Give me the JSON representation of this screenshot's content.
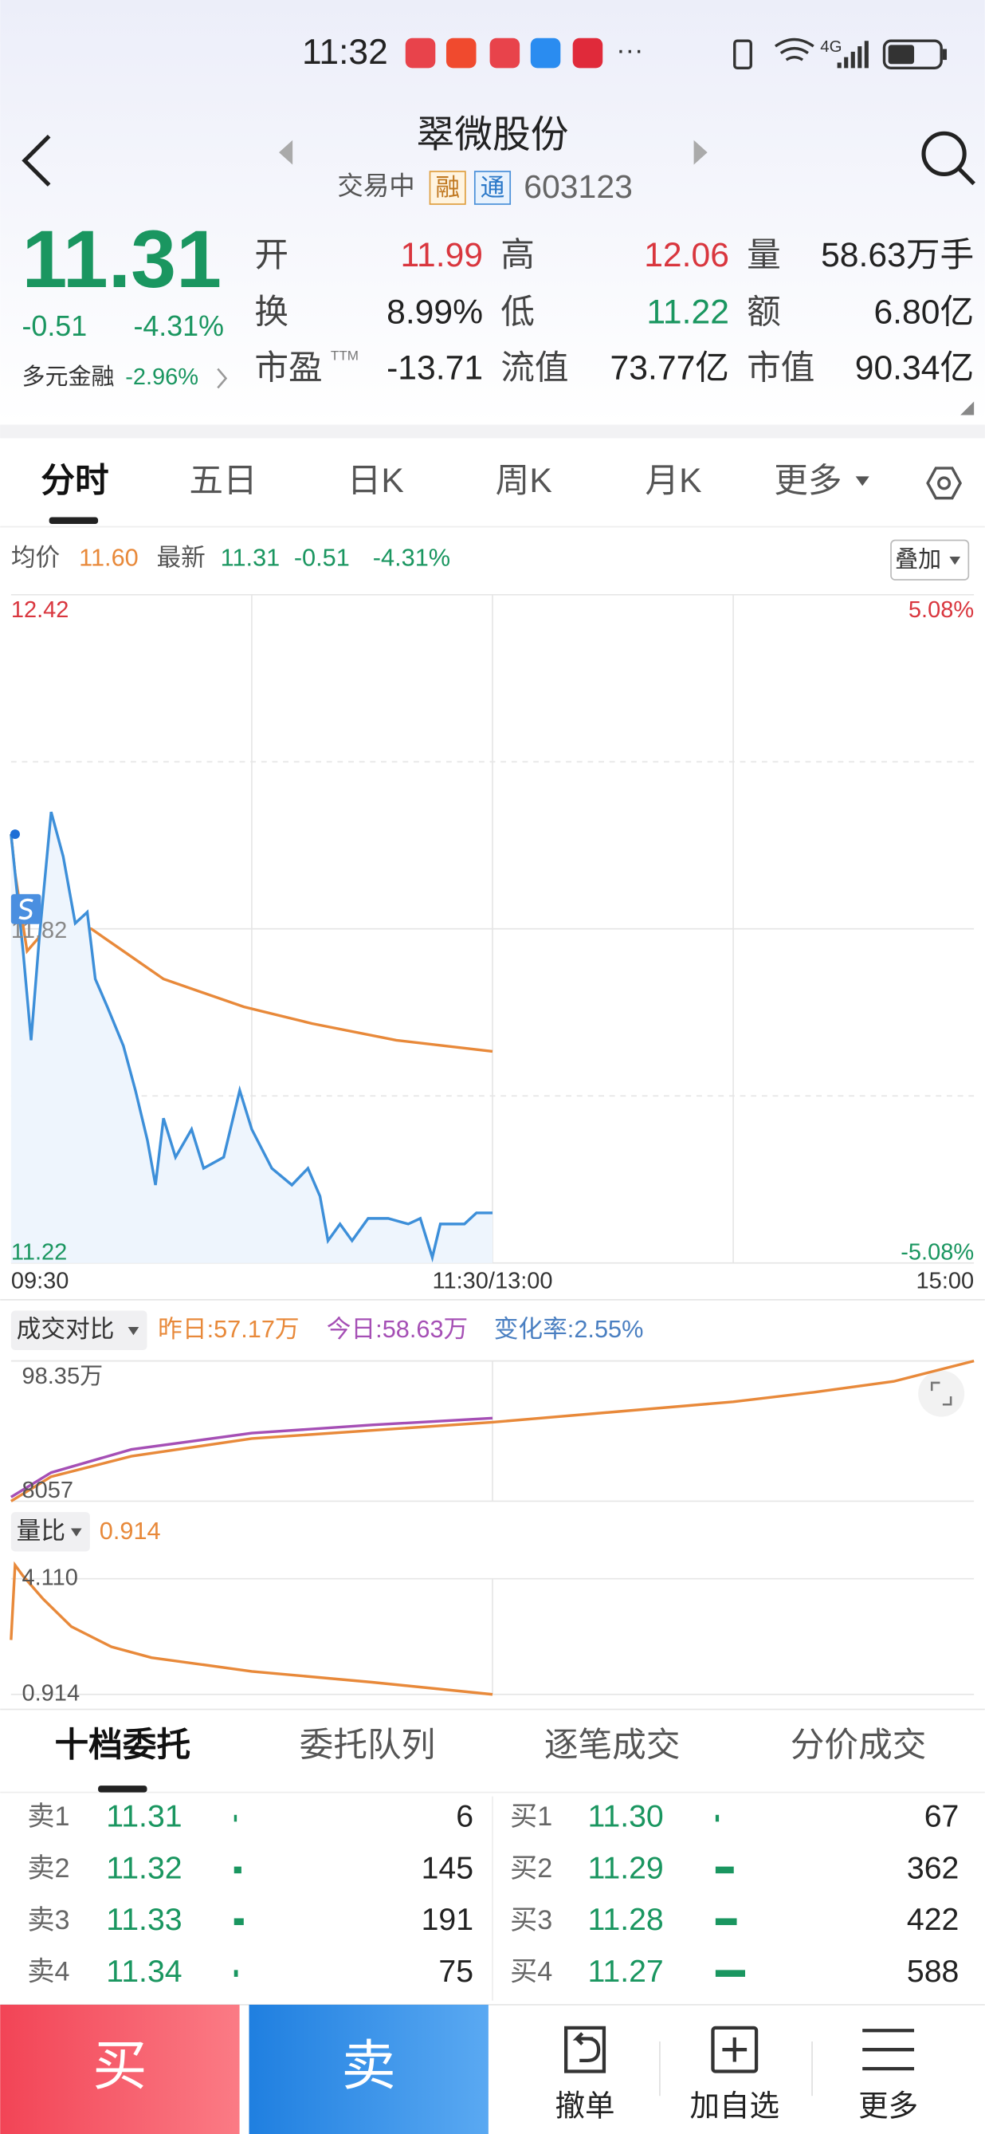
{
  "status_bar": {
    "time": "11:32",
    "more": "···",
    "network": "4G"
  },
  "header": {
    "name": "翠微股份",
    "status": "交易中",
    "badges": [
      "融",
      "通"
    ],
    "code": "603123"
  },
  "quote": {
    "price": "11.31",
    "change": "-0.51",
    "change_pct": "-4.31%",
    "sector": "多元金融",
    "sector_pct": "-2.96%",
    "ttm": "TTM",
    "fields": [
      [
        {
          "label": "开",
          "value": "11.99"
        },
        {
          "label": "高",
          "value": "12.06"
        },
        {
          "label": "量",
          "value": "58.63万手"
        }
      ],
      [
        {
          "label": "换",
          "value": "8.99%"
        },
        {
          "label": "低",
          "value": "11.22"
        },
        {
          "label": "额",
          "value": "6.80亿"
        }
      ],
      [
        {
          "label": "市盈",
          "value": "-13.71"
        },
        {
          "label": "流值",
          "value": "73.77亿"
        },
        {
          "label": "市值",
          "value": "90.34亿"
        }
      ]
    ]
  },
  "tabs": [
    "分时",
    "五日",
    "日K",
    "周K",
    "月K",
    "更多"
  ],
  "info_bar": {
    "avg": "11.60",
    "latest": "11.31",
    "change": "-0.51",
    "change_pct": "-4.31%",
    "overlay": "叠加"
  },
  "chart_data": [
    {
      "type": "line",
      "xlim": [
        0,
        240
      ],
      "xticks": [
        {
          "value": 0,
          "label": "09:30"
        },
        {
          "value": 120,
          "label": "11:30/13:00"
        },
        {
          "value": 240,
          "label": "15:00"
        }
      ],
      "xgrid": [
        60,
        120,
        180
      ],
      "ylim": [
        11.22,
        12.42
      ],
      "yticks": [
        12.42,
        11.82,
        11.22
      ],
      "minor_yticks": [
        12.12,
        11.52
      ],
      "y2lim": [
        -5.08,
        5.08
      ],
      "y2ticks": [
        {
          "value": 5.08,
          "label": "5.08%"
        },
        {
          "value": -5.08,
          "label": "-5.08%"
        }
      ],
      "series": [
        {
          "name": "均价",
          "color": "#e8893a",
          "x": [
            0,
            1,
            4,
            10,
            20,
            28,
            38,
            58,
            75,
            96,
            120
          ],
          "values": [
            11.99,
            11.92,
            11.78,
            11.83,
            11.82,
            11.78,
            11.73,
            11.68,
            11.65,
            11.62,
            11.6
          ]
        },
        {
          "name": "最新",
          "color": "#3d8fd9",
          "area": true,
          "x": [
            0,
            3,
            5,
            7,
            10,
            13,
            16,
            19,
            21,
            24,
            28,
            31,
            34,
            36,
            38,
            41,
            45,
            48,
            53,
            57,
            60,
            65,
            70,
            74,
            77,
            79,
            82,
            85,
            89,
            94,
            99,
            102,
            105,
            107,
            113,
            116,
            120
          ],
          "values": [
            11.99,
            11.78,
            11.62,
            11.8,
            12.03,
            11.95,
            11.83,
            11.85,
            11.73,
            11.68,
            11.61,
            11.53,
            11.44,
            11.36,
            11.48,
            11.41,
            11.46,
            11.39,
            11.41,
            11.53,
            11.46,
            11.39,
            11.36,
            11.39,
            11.34,
            11.26,
            11.29,
            11.26,
            11.3,
            11.3,
            11.29,
            11.3,
            11.23,
            11.29,
            11.29,
            11.31,
            11.31
          ]
        }
      ]
    },
    {
      "type": "line",
      "title": "成交对比",
      "annotation": "变化率:2.55%",
      "xlim": [
        0,
        240
      ],
      "xgrid": [
        120
      ],
      "ylim": [
        8057,
        983500
      ],
      "yticks": [
        {
          "value": 983500,
          "label": "98.35万"
        },
        8057
      ],
      "series": [
        {
          "name": "昨日:57.17万",
          "color": "#e8893a",
          "x": [
            0,
            10,
            30,
            60,
            120,
            180,
            200,
            220,
            240
          ],
          "values": [
            8057,
            178520,
            320580,
            443700,
            557340,
            699390,
            765680,
            841450,
            983500
          ]
        },
        {
          "name": "今日:58.63万",
          "color": "#a54fb5",
          "x": [
            0,
            10,
            30,
            60,
            90,
            120
          ],
          "values": [
            36470,
            206940,
            367930,
            481580,
            538400,
            585750
          ]
        }
      ]
    },
    {
      "type": "line",
      "title": "量比",
      "annotation": "0.914",
      "xlim": [
        0,
        240
      ],
      "xgrid": [
        120
      ],
      "ylim": [
        0.914,
        4.11
      ],
      "yticks": [
        {
          "value": 4.11,
          "label": "4.110"
        },
        0.914
      ],
      "series": [
        {
          "color": "#e8893a",
          "x": [
            0,
            1,
            3,
            8,
            15,
            25,
            35,
            60,
            90,
            120
          ],
          "values": [
            2.418,
            4.486,
            4.185,
            3.55,
            2.79,
            2.23,
            1.93,
            1.55,
            1.25,
            0.914
          ]
        }
      ]
    }
  ],
  "order_book": {
    "tabs": [
      "十档委托",
      "委托队列",
      "逐笔成交",
      "分价成交"
    ],
    "asks": [
      [
        "卖1",
        "11.31",
        6
      ],
      [
        "卖2",
        "11.32",
        145
      ],
      [
        "卖3",
        "11.33",
        191
      ],
      [
        "卖4",
        "11.34",
        75
      ]
    ],
    "bids": [
      [
        "买1",
        "11.30",
        67
      ],
      [
        "买2",
        "11.29",
        362
      ],
      [
        "买3",
        "11.28",
        422
      ],
      [
        "买4",
        "11.27",
        588
      ]
    ]
  },
  "bottom_bar": {
    "buy": "买",
    "sell": "卖",
    "actions": [
      "撤单",
      "加自选",
      "更多"
    ]
  }
}
